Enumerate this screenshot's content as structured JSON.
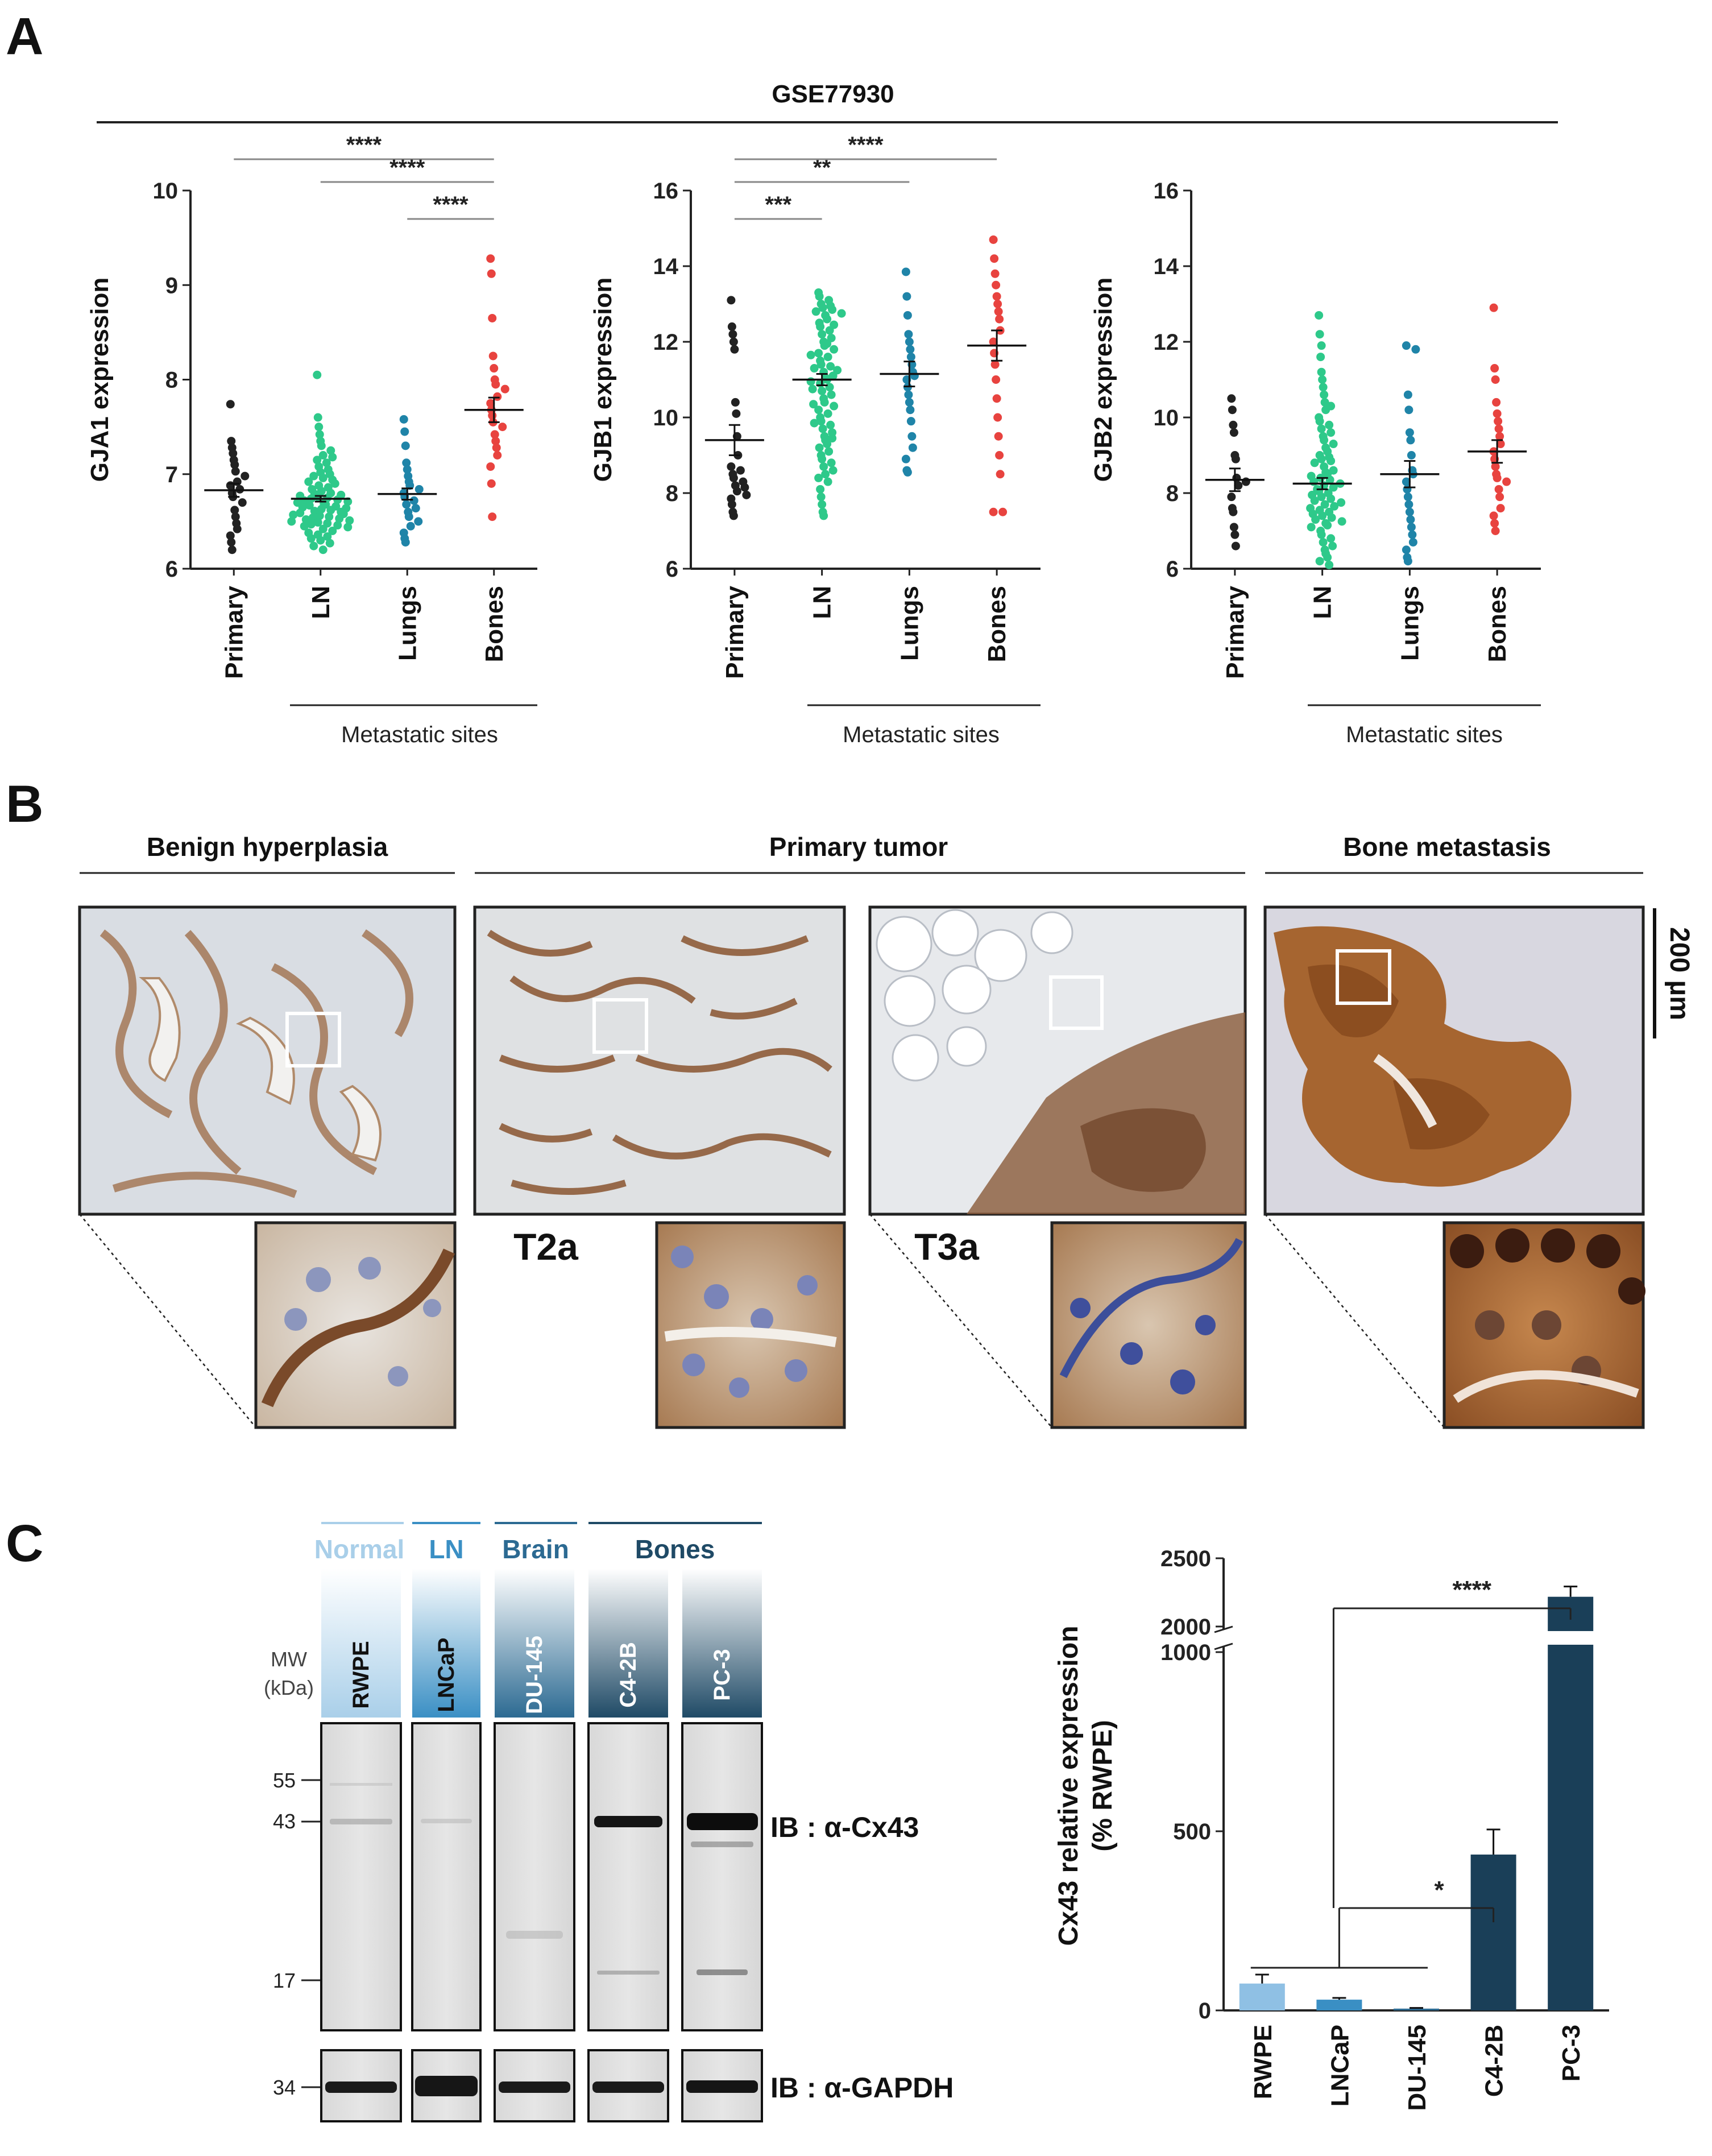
{
  "panels": {
    "a": {
      "letter": "A",
      "dataset": "GSE77930",
      "group_label": "Metastatic sites"
    },
    "b": {
      "letter": "B",
      "groups": [
        "Benign hyperplasia",
        "Primary tumor",
        "Bone metastasis"
      ],
      "stages": [
        "T2a",
        "T3a"
      ],
      "scale_bar": "200 µm",
      "colors": {
        "bg": "#d8dde2",
        "stain_light": "#b07a4a",
        "stain_dark": "#7a4220"
      }
    },
    "c": {
      "letter": "C",
      "origins": [
        "Normal",
        "LN",
        "Brain",
        "Bones"
      ],
      "origin_colors": [
        "#a9cfe9",
        "#3a8fc4",
        "#2c6a92",
        "#1f4a66"
      ],
      "cell_lines": [
        "RWPE",
        "LNCaP",
        "DU-145",
        "C4-2B",
        "PC-3"
      ],
      "mw_title": [
        "MW",
        "(kDa)"
      ],
      "mw_markers": [
        "55",
        "43",
        "17"
      ],
      "mw_gapdh": "34",
      "blot_labels": [
        "IB : α-Cx43",
        "IB : α-GAPDH"
      ]
    }
  },
  "chart_data": [
    {
      "type": "scatter",
      "title": "GSE77930",
      "ylabel": "GJA1 expression",
      "ylim": [
        6,
        10
      ],
      "yticks": [
        6,
        7,
        8,
        9,
        10
      ],
      "categories": [
        "Primary",
        "LN",
        "Lungs",
        "Bones"
      ],
      "group_colors": [
        "#222222",
        "#2ec98a",
        "#1f84a8",
        "#e8433f"
      ],
      "means": [
        6.83,
        6.74,
        6.79,
        7.68
      ],
      "sems": [
        0.07,
        0.03,
        0.06,
        0.13
      ],
      "points": [
        [
          7.74,
          7.35,
          7.28,
          7.22,
          7.15,
          7.1,
          7.03,
          6.98,
          6.92,
          6.88,
          6.84,
          6.8,
          6.76,
          6.7,
          6.62,
          6.55,
          6.48,
          6.42,
          6.35,
          6.28,
          6.2
        ],
        [
          8.05,
          7.6,
          7.5,
          7.42,
          7.35,
          7.3,
          7.25,
          7.2,
          7.18,
          7.15,
          7.12,
          7.08,
          7.05,
          7.02,
          7.0,
          6.98,
          6.96,
          6.94,
          6.92,
          6.9,
          6.88,
          6.86,
          6.84,
          6.82,
          6.8,
          6.79,
          6.78,
          6.77,
          6.76,
          6.75,
          6.74,
          6.73,
          6.72,
          6.71,
          6.7,
          6.69,
          6.68,
          6.67,
          6.66,
          6.65,
          6.64,
          6.63,
          6.62,
          6.61,
          6.6,
          6.59,
          6.58,
          6.57,
          6.56,
          6.55,
          6.54,
          6.53,
          6.52,
          6.51,
          6.5,
          6.49,
          6.48,
          6.47,
          6.46,
          6.45,
          6.44,
          6.42,
          6.4,
          6.38,
          6.36,
          6.34,
          6.32,
          6.3,
          6.27,
          6.24,
          6.2
        ],
        [
          7.58,
          7.45,
          7.3,
          7.12,
          7.05,
          6.98,
          6.92,
          6.88,
          6.84,
          6.8,
          6.76,
          6.72,
          6.68,
          6.64,
          6.6,
          6.55,
          6.5,
          6.45,
          6.38,
          6.32,
          6.28
        ],
        [
          9.28,
          9.12,
          8.65,
          8.25,
          8.12,
          8.0,
          7.95,
          7.9,
          7.82,
          7.75,
          7.68,
          7.62,
          7.55,
          7.5,
          7.42,
          7.35,
          7.28,
          7.2,
          7.08,
          6.9,
          6.55
        ]
      ],
      "annotations": [
        {
          "label": "****",
          "from": "Primary",
          "to": "Bones"
        },
        {
          "label": "****",
          "from": "LN",
          "to": "Bones"
        },
        {
          "label": "****",
          "from": "Lungs",
          "to": "Bones"
        }
      ],
      "group_bracket": {
        "label": "Metastatic sites",
        "from": "LN",
        "to": "Bones"
      }
    },
    {
      "type": "scatter",
      "ylabel": "GJB1 expression",
      "ylim": [
        6,
        16
      ],
      "yticks": [
        6,
        8,
        10,
        12,
        14,
        16
      ],
      "categories": [
        "Primary",
        "LN",
        "Lungs",
        "Bones"
      ],
      "group_colors": [
        "#222222",
        "#2ec98a",
        "#1f84a8",
        "#e8433f"
      ],
      "means": [
        9.4,
        11.0,
        11.15,
        11.9
      ],
      "sems": [
        0.4,
        0.15,
        0.33,
        0.4
      ],
      "points": [
        [
          13.1,
          12.4,
          12.2,
          12.0,
          11.8,
          10.4,
          10.1,
          9.5,
          9.0,
          8.7,
          8.6,
          8.5,
          8.4,
          8.3,
          8.2,
          8.15,
          8.05,
          7.95,
          7.85,
          7.7,
          7.5,
          7.4
        ],
        [
          13.3,
          13.2,
          13.1,
          13.0,
          12.95,
          12.9,
          12.85,
          12.8,
          12.7,
          12.6,
          12.5,
          12.4,
          12.3,
          12.2,
          12.1,
          12.0,
          11.9,
          11.8,
          11.7,
          11.6,
          11.5,
          11.4,
          11.35,
          11.3,
          11.2,
          11.1,
          11.05,
          11.0,
          10.95,
          10.9,
          10.8,
          10.7,
          10.6,
          10.5,
          10.4,
          10.3,
          10.2,
          10.1,
          10.0,
          9.9,
          9.8,
          9.7,
          9.6,
          9.5,
          9.4,
          9.3,
          9.2,
          9.1,
          9.0,
          8.9,
          8.8,
          8.7,
          8.6,
          8.5,
          8.4,
          8.3,
          8.1,
          7.9,
          7.7,
          7.5,
          7.4,
          12.75,
          12.45,
          11.95,
          11.65,
          11.25,
          10.75,
          10.35,
          9.85,
          9.45
        ],
        [
          13.85,
          13.2,
          12.7,
          12.2,
          12.0,
          11.8,
          11.6,
          11.4,
          11.2,
          11.1,
          11.0,
          10.8,
          10.6,
          10.4,
          10.2,
          9.9,
          9.5,
          9.2,
          8.9,
          8.6,
          8.55
        ],
        [
          14.7,
          14.2,
          13.8,
          13.5,
          13.2,
          13.0,
          12.8,
          12.6,
          12.3,
          12.0,
          11.7,
          11.4,
          11.0,
          10.5,
          10.0,
          9.5,
          9.0,
          8.5,
          7.5,
          7.5
        ]
      ],
      "annotations": [
        {
          "label": "***",
          "from": "Primary",
          "to": "LN"
        },
        {
          "label": "**",
          "from": "Primary",
          "to": "Lungs"
        },
        {
          "label": "****",
          "from": "Primary",
          "to": "Bones"
        }
      ],
      "group_bracket": {
        "label": "Metastatic sites",
        "from": "LN",
        "to": "Bones"
      }
    },
    {
      "type": "scatter",
      "ylabel": "GJB2 expression",
      "ylim": [
        6,
        16
      ],
      "yticks": [
        6,
        8,
        10,
        12,
        14,
        16
      ],
      "categories": [
        "Primary",
        "LN",
        "Lungs",
        "Bones"
      ],
      "group_colors": [
        "#222222",
        "#2ec98a",
        "#1f84a8",
        "#e8433f"
      ],
      "means": [
        8.35,
        8.25,
        8.5,
        9.1
      ],
      "sems": [
        0.3,
        0.15,
        0.35,
        0.3
      ],
      "points": [
        [
          10.5,
          10.2,
          9.8,
          9.6,
          9.0,
          8.9,
          8.4,
          8.3,
          8.2,
          7.9,
          7.6,
          7.5,
          7.1,
          6.9,
          6.6
        ],
        [
          12.7,
          12.2,
          11.6,
          11.2,
          11.0,
          10.8,
          10.6,
          10.4,
          10.2,
          10.0,
          9.9,
          9.8,
          9.7,
          9.6,
          9.5,
          9.4,
          9.3,
          9.2,
          9.1,
          9.0,
          8.95,
          8.9,
          8.85,
          8.8,
          8.7,
          8.6,
          8.55,
          8.5,
          8.45,
          8.4,
          8.35,
          8.3,
          8.25,
          8.2,
          8.15,
          8.1,
          8.05,
          8.0,
          7.95,
          7.9,
          7.85,
          7.8,
          7.75,
          7.7,
          7.65,
          7.6,
          7.55,
          7.5,
          7.45,
          7.4,
          7.35,
          7.3,
          7.25,
          7.2,
          7.15,
          7.1,
          7.0,
          6.9,
          6.8,
          6.7,
          6.6,
          6.5,
          6.4,
          6.3,
          6.2,
          6.1,
          11.9,
          10.3
        ],
        [
          11.9,
          11.8,
          10.6,
          10.2,
          9.6,
          9.4,
          9.0,
          8.6,
          8.5,
          8.3,
          8.1,
          7.9,
          7.7,
          7.5,
          7.3,
          7.1,
          6.9,
          6.7,
          6.5,
          6.3,
          6.2
        ],
        [
          12.9,
          11.3,
          11.0,
          10.4,
          10.1,
          9.9,
          9.7,
          9.5,
          9.3,
          9.1,
          8.9,
          8.7,
          8.5,
          8.4,
          8.3,
          8.1,
          7.9,
          7.6,
          7.4,
          7.2,
          7.0
        ]
      ],
      "group_bracket": {
        "label": "Metastatic sites",
        "from": "LN",
        "to": "Bones"
      }
    },
    {
      "type": "bar",
      "ylabel": "Cx43 relative expression",
      "ylabel2": "(% RWPE)",
      "categories": [
        "RWPE",
        "LNCaP",
        "DU-145",
        "C4-2B",
        "PC-3"
      ],
      "values": [
        75,
        30,
        5,
        435,
        2218
      ],
      "errors": [
        25,
        5,
        2,
        70,
        75
      ],
      "colors": [
        "#8fc0e4",
        "#3a8fc4",
        "#2c6a92",
        "#1a3f58",
        "#1a3f58"
      ],
      "axis_break": {
        "lower": [
          0,
          1000
        ],
        "upper": [
          2000,
          2500
        ]
      },
      "yticks": [
        0,
        500,
        1000,
        2000,
        2500
      ],
      "annotations": [
        {
          "label": "*",
          "from": [
            "RWPE",
            "LNCaP",
            "DU-145"
          ],
          "to": "C4-2B"
        },
        {
          "label": "****",
          "from": [
            "RWPE",
            "LNCaP",
            "DU-145"
          ],
          "to": "PC-3"
        }
      ]
    }
  ]
}
